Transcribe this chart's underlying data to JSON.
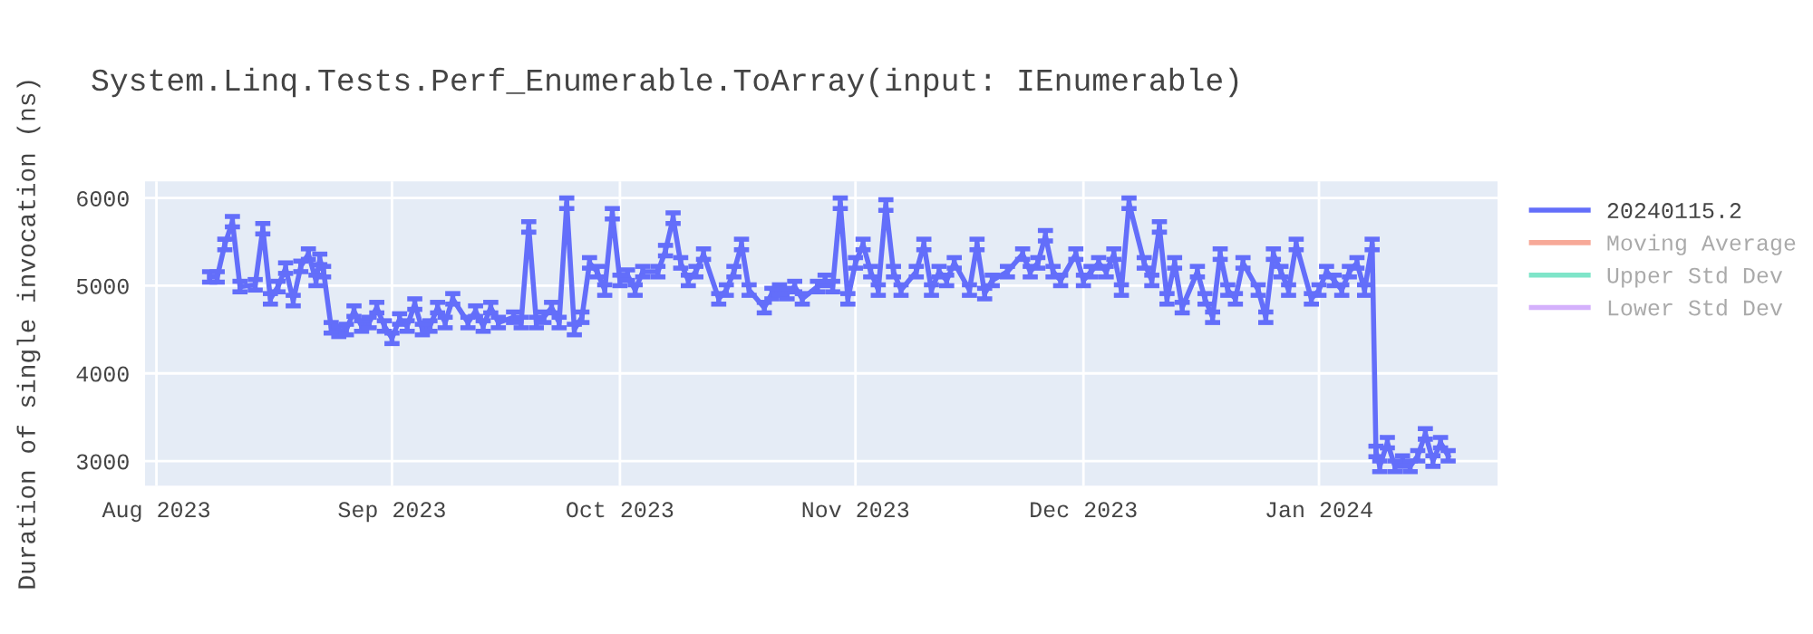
{
  "chart_data": {
    "type": "line",
    "title": "System.Linq.Tests.Perf_Enumerable.ToArray(input: IEnumerable)",
    "ylabel": "Duration of single invocation (ns)",
    "x": [
      "2023-08-08",
      "2023-08-09",
      "2023-08-10",
      "2023-08-11",
      "2023-08-12",
      "2023-08-14",
      "2023-08-15",
      "2023-08-16",
      "2023-08-17",
      "2023-08-18",
      "2023-08-19",
      "2023-08-20",
      "2023-08-21",
      "2023-08-22",
      "2023-08-22T12:00",
      "2023-08-23",
      "2023-08-24",
      "2023-08-25",
      "2023-08-26",
      "2023-08-27",
      "2023-08-28",
      "2023-08-29",
      "2023-08-30",
      "2023-08-31",
      "2023-09-01",
      "2023-09-02",
      "2023-09-03",
      "2023-09-04",
      "2023-09-05",
      "2023-09-06",
      "2023-09-07",
      "2023-09-08",
      "2023-09-09",
      "2023-09-11",
      "2023-09-12",
      "2023-09-13",
      "2023-09-14",
      "2023-09-15",
      "2023-09-17",
      "2023-09-18",
      "2023-09-19",
      "2023-09-20",
      "2023-09-21",
      "2023-09-22",
      "2023-09-23",
      "2023-09-24",
      "2023-09-25",
      "2023-09-26",
      "2023-09-27",
      "2023-09-28",
      "2023-09-29",
      "2023-09-30",
      "2023-10-01",
      "2023-10-02",
      "2023-10-03",
      "2023-10-04",
      "2023-10-06",
      "2023-10-07",
      "2023-10-08",
      "2023-10-09",
      "2023-10-10",
      "2023-10-11",
      "2023-10-12",
      "2023-10-14",
      "2023-10-15",
      "2023-10-16",
      "2023-10-17",
      "2023-10-18",
      "2023-10-20",
      "2023-10-21",
      "2023-10-22",
      "2023-10-23",
      "2023-10-24",
      "2023-10-25",
      "2023-10-27",
      "2023-10-28",
      "2023-10-29",
      "2023-10-30",
      "2023-10-31",
      "2023-11-01",
      "2023-11-02",
      "2023-11-03",
      "2023-11-04",
      "2023-11-05",
      "2023-11-06",
      "2023-11-07",
      "2023-11-09",
      "2023-11-10",
      "2023-11-11",
      "2023-11-12",
      "2023-11-13",
      "2023-11-14",
      "2023-11-16",
      "2023-11-17",
      "2023-11-18",
      "2023-11-19",
      "2023-11-21",
      "2023-11-23",
      "2023-11-24",
      "2023-11-25",
      "2023-11-26",
      "2023-11-27",
      "2023-11-28",
      "2023-11-30",
      "2023-12-01",
      "2023-12-02",
      "2023-12-03",
      "2023-12-04",
      "2023-12-05",
      "2023-12-06",
      "2023-12-07",
      "2023-12-09",
      "2023-12-10",
      "2023-12-11",
      "2023-12-12",
      "2023-12-13",
      "2023-12-14",
      "2023-12-16",
      "2023-12-17",
      "2023-12-18",
      "2023-12-19",
      "2023-12-20",
      "2023-12-21",
      "2023-12-22",
      "2023-12-24",
      "2023-12-25",
      "2023-12-26",
      "2023-12-27",
      "2023-12-28",
      "2023-12-29",
      "2023-12-31",
      "2024-01-01",
      "2024-01-02",
      "2024-01-03",
      "2024-01-04",
      "2024-01-05",
      "2024-01-06",
      "2024-01-07",
      "2024-01-08",
      "2024-01-08T12:00",
      "2024-01-09",
      "2024-01-10",
      "2024-01-11",
      "2024-01-12",
      "2024-01-13",
      "2024-01-14",
      "2024-01-15",
      "2024-01-16",
      "2024-01-17",
      "2024-01-18"
    ],
    "series": [
      {
        "name": "20240115.2",
        "color": "#636efa",
        "values": [
          5100,
          5100,
          5470,
          5730,
          4990,
          5010,
          5650,
          4850,
          4990,
          5200,
          4830,
          5220,
          5360,
          5060,
          5300,
          5160,
          4520,
          4480,
          4500,
          4710,
          4540,
          4580,
          4750,
          4540,
          4400,
          4620,
          4540,
          4790,
          4500,
          4540,
          4750,
          4580,
          4850,
          4580,
          4710,
          4540,
          4750,
          4580,
          4640,
          4580,
          5670,
          4580,
          4640,
          4750,
          4580,
          5940,
          4500,
          4640,
          5260,
          5160,
          4950,
          5820,
          5060,
          5120,
          4950,
          5160,
          5160,
          5400,
          5770,
          5260,
          5060,
          5160,
          5360,
          4850,
          4950,
          5160,
          5470,
          4950,
          4750,
          4910,
          4950,
          4910,
          4990,
          4850,
          4990,
          5060,
          4990,
          5940,
          4850,
          5260,
          5470,
          5160,
          4950,
          5920,
          5160,
          4950,
          5160,
          5470,
          4950,
          5160,
          5060,
          5260,
          4950,
          5470,
          4910,
          5060,
          5160,
          5360,
          5160,
          5260,
          5570,
          5160,
          5060,
          5360,
          5060,
          5160,
          5260,
          5160,
          5360,
          4950,
          5940,
          5260,
          5060,
          5670,
          4850,
          5260,
          4750,
          5160,
          4850,
          4640,
          5360,
          4950,
          4850,
          5260,
          4950,
          4640,
          5360,
          5160,
          4950,
          5470,
          4850,
          4950,
          5160,
          5060,
          4950,
          5160,
          5260,
          4950,
          5470,
          3110,
          2940,
          3210,
          2940,
          3000,
          2940,
          3060,
          3310,
          3000,
          3210,
          3060
        ],
        "errors": [
          60,
          60,
          60,
          60,
          60,
          60,
          60,
          60,
          60,
          60,
          60,
          60,
          60,
          60,
          60,
          60,
          60,
          60,
          60,
          60,
          60,
          60,
          60,
          60,
          60,
          60,
          60,
          60,
          60,
          60,
          60,
          60,
          60,
          60,
          60,
          60,
          60,
          60,
          60,
          60,
          60,
          60,
          60,
          60,
          60,
          60,
          60,
          60,
          60,
          60,
          60,
          60,
          60,
          60,
          60,
          60,
          60,
          60,
          60,
          60,
          60,
          60,
          60,
          60,
          60,
          60,
          60,
          60,
          60,
          60,
          60,
          60,
          60,
          60,
          60,
          60,
          60,
          60,
          60,
          60,
          60,
          60,
          60,
          60,
          60,
          60,
          60,
          60,
          60,
          60,
          60,
          60,
          60,
          60,
          60,
          60,
          60,
          60,
          60,
          60,
          60,
          60,
          60,
          60,
          60,
          60,
          60,
          60,
          60,
          60,
          60,
          60,
          60,
          60,
          60,
          60,
          60,
          60,
          60,
          60,
          60,
          60,
          60,
          60,
          60,
          60,
          60,
          60,
          60,
          60,
          60,
          60,
          60,
          60,
          60,
          60,
          60,
          60,
          60,
          60,
          60,
          60,
          60,
          60,
          60,
          60,
          60,
          60,
          60,
          60
        ]
      },
      {
        "name": "Moving Average",
        "color": "#f7a998",
        "values": [
          null,
          null,
          null,
          null,
          null,
          null,
          null,
          null,
          null,
          null,
          null,
          null,
          null,
          null,
          null,
          null,
          null,
          null,
          null,
          null,
          null,
          null,
          null,
          null,
          null,
          null,
          null,
          null,
          null,
          null,
          null,
          null,
          null,
          null,
          null,
          null,
          null,
          null,
          null,
          null,
          null,
          null,
          null,
          null,
          null,
          null,
          null,
          null,
          null,
          null,
          null,
          null,
          null,
          null,
          null,
          null,
          null,
          null,
          null,
          null,
          null,
          null,
          null,
          null,
          null,
          null,
          null,
          null,
          null,
          null,
          null,
          null,
          null,
          null,
          null,
          null,
          null,
          null,
          null,
          null,
          null,
          null,
          null,
          null,
          null,
          null,
          null,
          null,
          null,
          null,
          null,
          null,
          null,
          null,
          null,
          null,
          null,
          null,
          null,
          null,
          null,
          null,
          null,
          null,
          null,
          null,
          null,
          null,
          null,
          null,
          null,
          null,
          null,
          null,
          null,
          null,
          null,
          null,
          null,
          null,
          null,
          null,
          null,
          null,
          null,
          null,
          null,
          null,
          null,
          null,
          null,
          null,
          null,
          null,
          null,
          null,
          null,
          null,
          null,
          null,
          null,
          null,
          null,
          null,
          null,
          null,
          null,
          null,
          null,
          null
        ]
      },
      {
        "name": "Upper Std Dev",
        "color": "#7fe5c9",
        "values": [
          null,
          null,
          null,
          null,
          null,
          null,
          null,
          null,
          null,
          null,
          null,
          null,
          null,
          null,
          null,
          null,
          null,
          null,
          null,
          null,
          null,
          null,
          null,
          null,
          null,
          null,
          null,
          null,
          null,
          null,
          null,
          null,
          null,
          null,
          null,
          null,
          null,
          null,
          null,
          null,
          null,
          null,
          null,
          null,
          null,
          null,
          null,
          null,
          null,
          null,
          null,
          null,
          null,
          null,
          null,
          null,
          null,
          null,
          null,
          null,
          null,
          null,
          null,
          null,
          null,
          null,
          null,
          null,
          null,
          null,
          null,
          null,
          null,
          null,
          null,
          null,
          null,
          null,
          null,
          null,
          null,
          null,
          null,
          null,
          null,
          null,
          null,
          null,
          null,
          null,
          null,
          null,
          null,
          null,
          null,
          null,
          null,
          null,
          null,
          null,
          null,
          null,
          null,
          null,
          null,
          null,
          null,
          null,
          null,
          null,
          null,
          null,
          null,
          null,
          null,
          null,
          null,
          null,
          null,
          null,
          null,
          null,
          null,
          null,
          null,
          null,
          null,
          null,
          null,
          null,
          null,
          null,
          null,
          null,
          null,
          null,
          null,
          null,
          null,
          null,
          null,
          null,
          null,
          null,
          null,
          null,
          null,
          null,
          null,
          null
        ]
      },
      {
        "name": "Lower Std Dev",
        "color": "#d4b0fc",
        "values": [
          null,
          null,
          null,
          null,
          null,
          null,
          null,
          null,
          null,
          null,
          null,
          null,
          null,
          null,
          null,
          null,
          null,
          null,
          null,
          null,
          null,
          null,
          null,
          null,
          null,
          null,
          null,
          null,
          null,
          null,
          null,
          null,
          null,
          null,
          null,
          null,
          null,
          null,
          null,
          null,
          null,
          null,
          null,
          null,
          null,
          null,
          null,
          null,
          null,
          null,
          null,
          null,
          null,
          null,
          null,
          null,
          null,
          null,
          null,
          null,
          null,
          null,
          null,
          null,
          null,
          null,
          null,
          null,
          null,
          null,
          null,
          null,
          null,
          null,
          null,
          null,
          null,
          null,
          null,
          null,
          null,
          null,
          null,
          null,
          null,
          null,
          null,
          null,
          null,
          null,
          null,
          null,
          null,
          null,
          null,
          null,
          null,
          null,
          null,
          null,
          null,
          null,
          null,
          null,
          null,
          null,
          null,
          null,
          null,
          null,
          null,
          null,
          null,
          null,
          null,
          null,
          null,
          null,
          null,
          null,
          null,
          null,
          null,
          null,
          null,
          null,
          null,
          null,
          null,
          null,
          null,
          null,
          null,
          null,
          null,
          null,
          null,
          null,
          null,
          null,
          null,
          null,
          null,
          null,
          null,
          null,
          null,
          null,
          null,
          null
        ]
      }
    ],
    "xlim": [
      "2023-07-30T12:00",
      "2024-01-24T12:00"
    ],
    "xticks": [
      {
        "value": "2023-08-01",
        "label": "Aug 2023"
      },
      {
        "value": "2023-09-01",
        "label": "Sep 2023"
      },
      {
        "value": "2023-10-01",
        "label": "Oct 2023"
      },
      {
        "value": "2023-11-01",
        "label": "Nov 2023"
      },
      {
        "value": "2023-12-01",
        "label": "Dec 2023"
      },
      {
        "value": "2024-01-01",
        "label": "Jan 2024"
      }
    ],
    "ylim": [
      2720,
      6190
    ],
    "yticks": [
      3000,
      4000,
      5000,
      6000
    ],
    "grid": true,
    "legend": "right",
    "marker": "none",
    "line_style": "solid"
  }
}
